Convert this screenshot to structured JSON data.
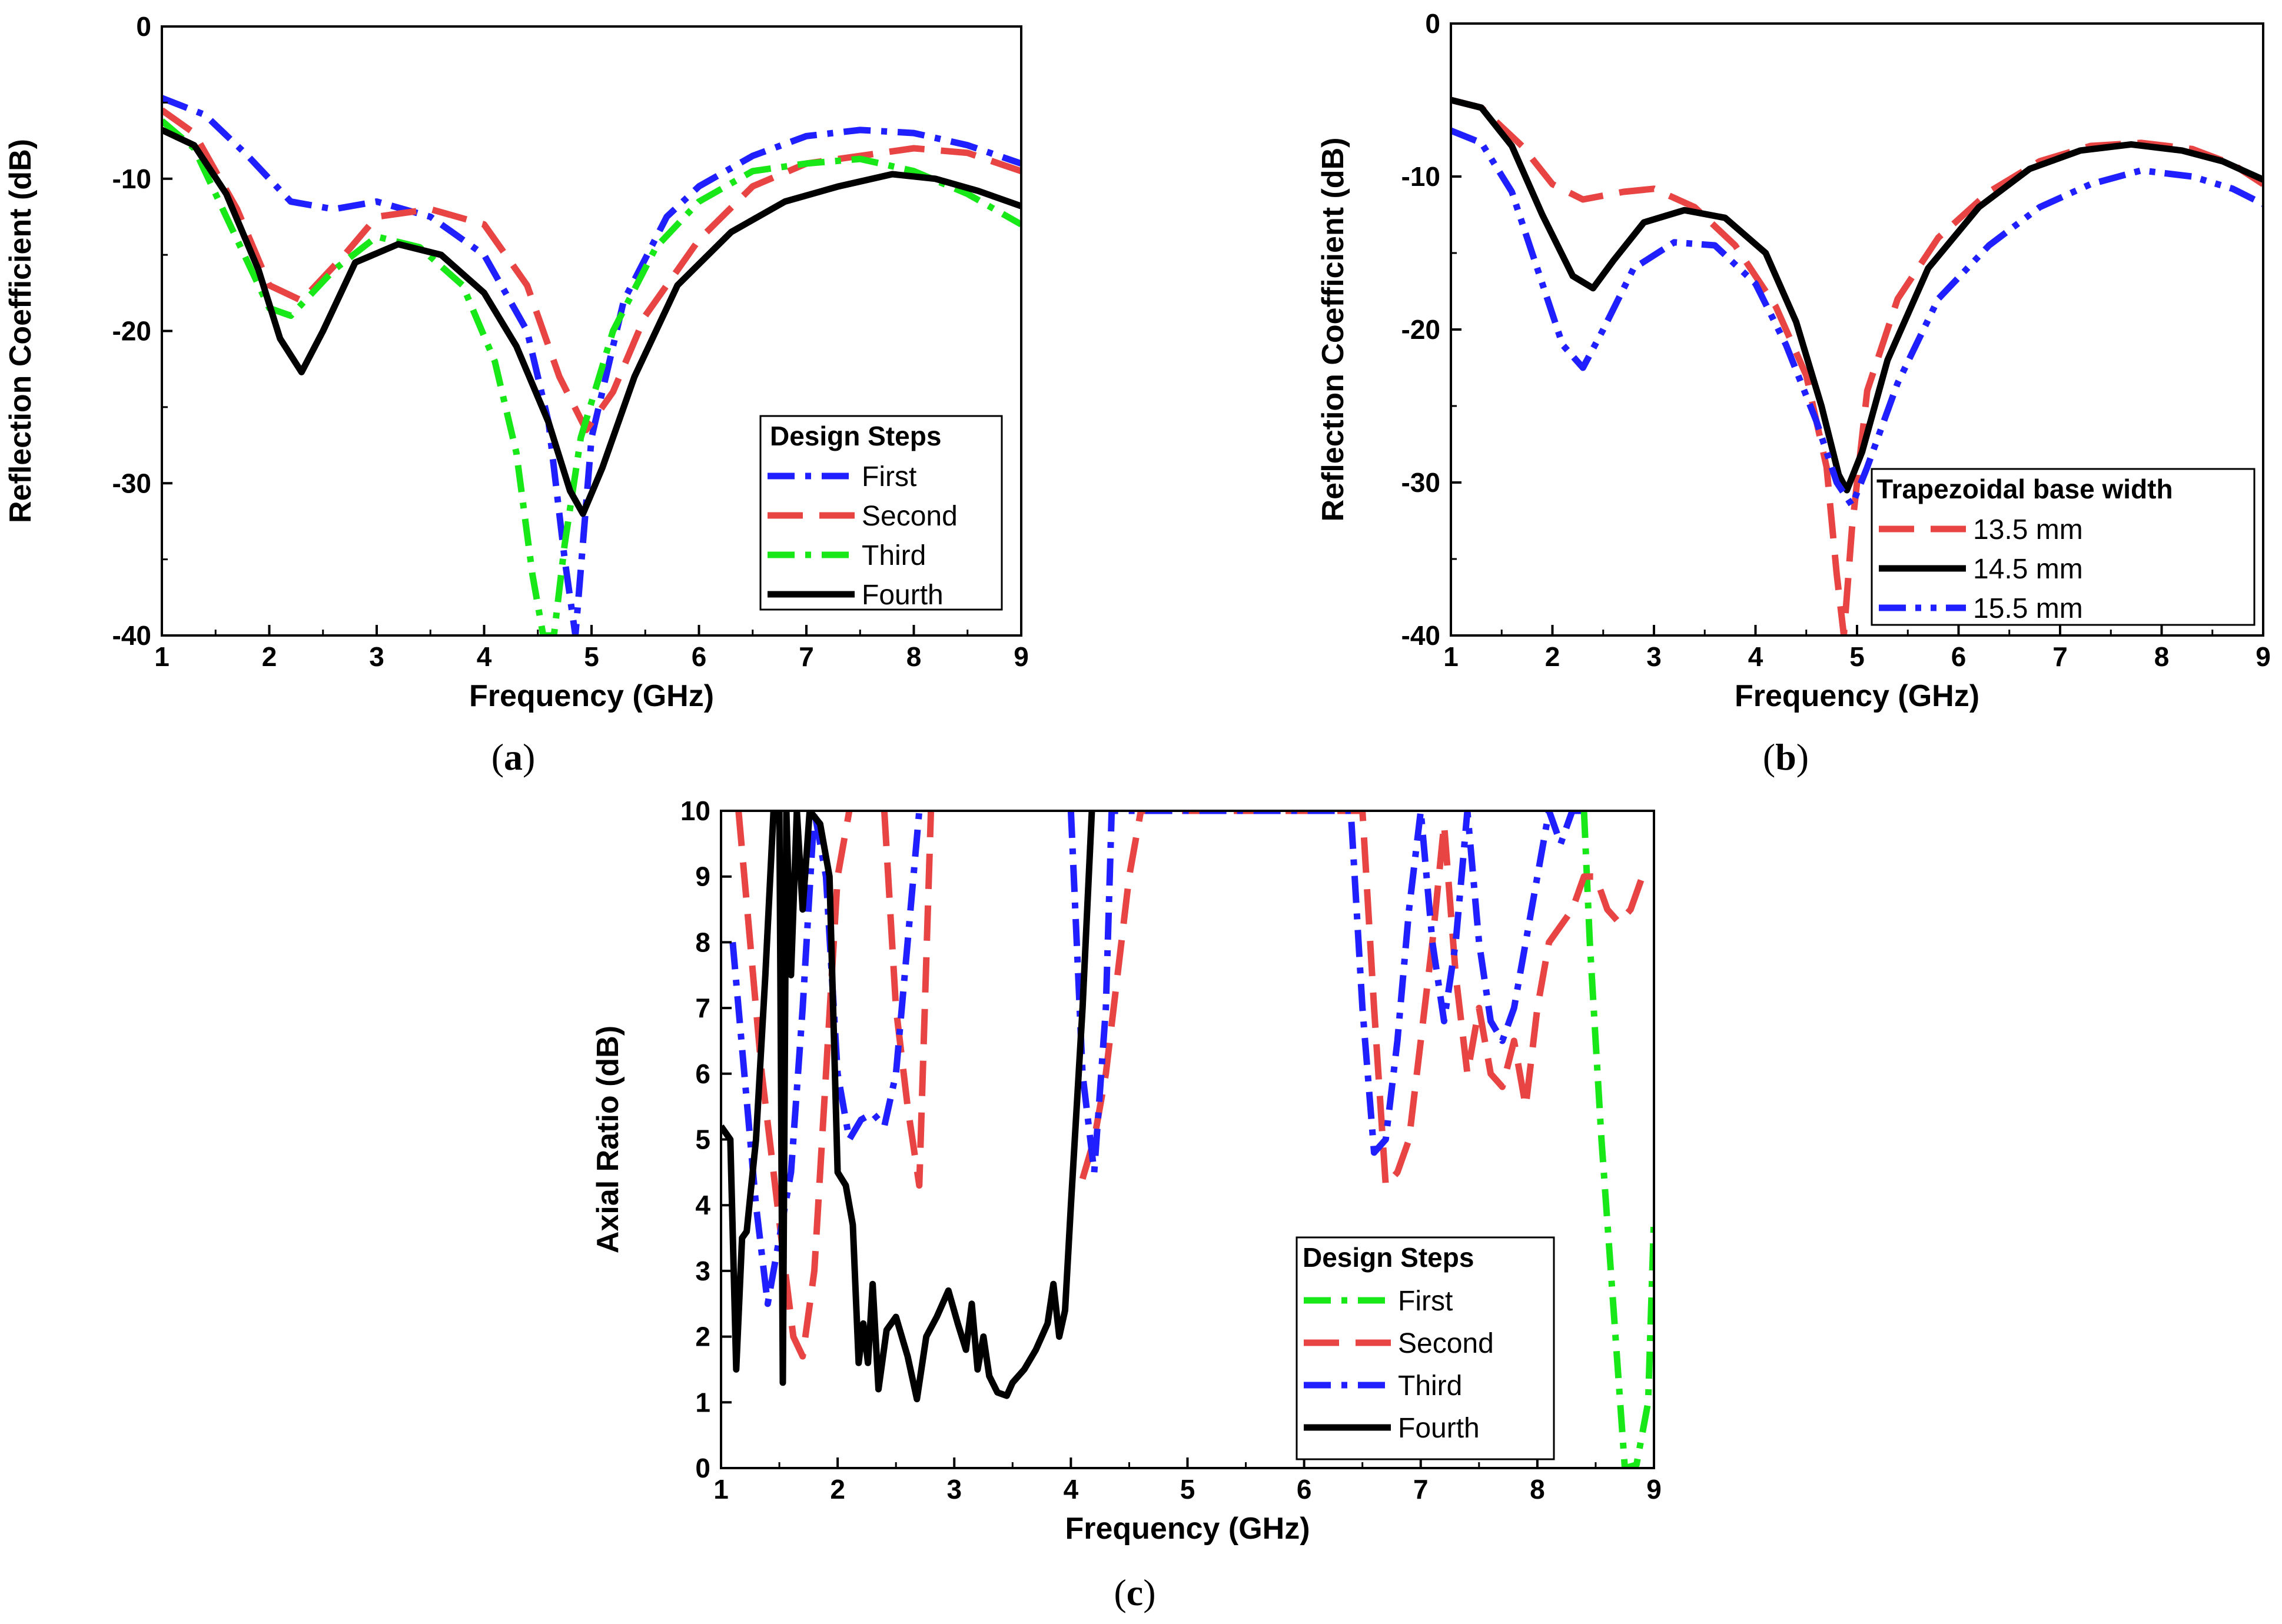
{
  "chart_data": [
    {
      "id": "a",
      "type": "line",
      "panel_label": "a",
      "xlabel": "Frequency (GHz)",
      "ylabel": "Reflection Coefficient (dB)",
      "xlim": [
        1,
        9
      ],
      "ylim": [
        -40,
        0
      ],
      "xticks": [
        1,
        2,
        3,
        4,
        5,
        6,
        7,
        8,
        9
      ],
      "yticks": [
        0,
        -10,
        -20,
        -30,
        -40
      ],
      "xtick_labels": [
        "1",
        "2",
        "3",
        "4",
        "5",
        "6",
        "7",
        "8",
        "9"
      ],
      "ytick_labels": [
        "0",
        "-10",
        "-20",
        "-30",
        "-40"
      ],
      "grid": false,
      "legend_title": "Design Steps",
      "legend_position": "bottom-right",
      "series": [
        {
          "name": "First",
          "color": "#1f1fff",
          "style": "dash-dot",
          "x": [
            1,
            1.4,
            1.8,
            2.2,
            2.6,
            3,
            3.5,
            4,
            4.4,
            4.6,
            4.75,
            4.85,
            5,
            5.3,
            5.7,
            6,
            6.5,
            7,
            7.5,
            8,
            8.5,
            9
          ],
          "y": [
            -4.7,
            -5.8,
            -8.5,
            -11.5,
            -12,
            -11.5,
            -12.5,
            -15,
            -20,
            -26,
            -35,
            -40,
            -27,
            -18,
            -12.5,
            -10.5,
            -8.5,
            -7.2,
            -6.8,
            -7,
            -7.8,
            -9
          ]
        },
        {
          "name": "Second",
          "color": "#e84444",
          "style": "dash",
          "x": [
            1,
            1.3,
            1.7,
            2,
            2.3,
            2.7,
            3,
            3.5,
            4,
            4.4,
            4.7,
            4.95,
            5.2,
            5.5,
            6,
            6.5,
            7,
            7.5,
            8,
            8.5,
            9
          ],
          "y": [
            -5.5,
            -7,
            -12,
            -17,
            -18,
            -15,
            -12.5,
            -12,
            -13,
            -17,
            -23,
            -26.5,
            -24,
            -19,
            -14,
            -10.5,
            -9,
            -8.5,
            -8,
            -8.3,
            -9.5
          ]
        },
        {
          "name": "Third",
          "color": "#18e818",
          "style": "dash-dot",
          "x": [
            1,
            1.3,
            1.7,
            2,
            2.2,
            2.6,
            3,
            3.4,
            3.8,
            4.1,
            4.3,
            4.45,
            4.55,
            4.65,
            4.75,
            4.9,
            5.2,
            5.6,
            6,
            6.5,
            7,
            7.5,
            8,
            8.5,
            9
          ],
          "y": [
            -6.2,
            -8,
            -14,
            -18.5,
            -19,
            -16,
            -13.8,
            -14.5,
            -17,
            -22,
            -28,
            -36,
            -40,
            -40,
            -34,
            -27,
            -20,
            -14.5,
            -11.5,
            -9.5,
            -9,
            -8.7,
            -9.5,
            -11,
            -13
          ]
        },
        {
          "name": "Fourth",
          "color": "#000000",
          "style": "solid",
          "x": [
            1,
            1.3,
            1.6,
            1.9,
            2.1,
            2.3,
            2.5,
            2.8,
            3.2,
            3.6,
            4,
            4.3,
            4.6,
            4.8,
            4.92,
            5.1,
            5.4,
            5.8,
            6.3,
            6.8,
            7.3,
            7.8,
            8.2,
            8.6,
            9
          ],
          "y": [
            -6.8,
            -7.8,
            -11,
            -16,
            -20.5,
            -22.7,
            -20,
            -15.5,
            -14.3,
            -15,
            -17.5,
            -21,
            -26,
            -30.5,
            -32,
            -29,
            -23,
            -17,
            -13.5,
            -11.5,
            -10.5,
            -9.7,
            -10,
            -10.8,
            -11.8
          ]
        }
      ]
    },
    {
      "id": "b",
      "type": "line",
      "panel_label": "b",
      "xlabel": "Frequency (GHz)",
      "ylabel": "Reflection Coefficient (dB)",
      "xlim": [
        1,
        9
      ],
      "ylim": [
        -40,
        0
      ],
      "xticks": [
        1,
        2,
        3,
        4,
        5,
        6,
        7,
        8,
        9
      ],
      "yticks": [
        0,
        -10,
        -20,
        -30,
        -40
      ],
      "xtick_labels": [
        "1",
        "2",
        "3",
        "4",
        "5",
        "6",
        "7",
        "8",
        "9"
      ],
      "ytick_labels": [
        "0",
        "-10",
        "-20",
        "-30",
        "-40"
      ],
      "grid": false,
      "legend_title": "Trapezoidal base width",
      "legend_position": "bottom-right",
      "series": [
        {
          "name": "13.5 mm",
          "color": "#e84444",
          "style": "dash",
          "x": [
            1,
            1.3,
            1.7,
            2,
            2.3,
            2.7,
            3,
            3.4,
            3.8,
            4.2,
            4.5,
            4.7,
            4.8,
            4.87,
            4.95,
            5.1,
            5.4,
            5.8,
            6.3,
            6.8,
            7.3,
            7.8,
            8.3,
            8.7,
            9
          ],
          "y": [
            -5,
            -5.5,
            -8,
            -10.5,
            -11.5,
            -11,
            -10.8,
            -12,
            -14.5,
            -18.5,
            -23,
            -29,
            -36,
            -40,
            -33,
            -24,
            -18,
            -14,
            -11,
            -9,
            -8,
            -7.8,
            -8.2,
            -9.2,
            -10.5
          ]
        },
        {
          "name": "14.5 mm",
          "color": "#000000",
          "style": "solid",
          "x": [
            1,
            1.3,
            1.6,
            1.9,
            2.2,
            2.4,
            2.6,
            2.9,
            3.3,
            3.7,
            4.1,
            4.4,
            4.65,
            4.82,
            4.9,
            5.05,
            5.3,
            5.7,
            6.2,
            6.7,
            7.2,
            7.7,
            8.2,
            8.6,
            9
          ],
          "y": [
            -5,
            -5.5,
            -8,
            -12.5,
            -16.5,
            -17.3,
            -15.5,
            -13,
            -12.2,
            -12.7,
            -15,
            -19.5,
            -25,
            -29.5,
            -30.5,
            -28,
            -22,
            -16,
            -12,
            -9.5,
            -8.3,
            -7.9,
            -8.3,
            -9,
            -10.2
          ]
        },
        {
          "name": "15.5 mm",
          "color": "#1f1fff",
          "style": "dash-dot-dot",
          "x": [
            1,
            1.3,
            1.6,
            1.9,
            2.1,
            2.3,
            2.5,
            2.8,
            3.2,
            3.6,
            4,
            4.3,
            4.6,
            4.8,
            4.95,
            5.1,
            5.4,
            5.8,
            6.3,
            6.8,
            7.3,
            7.8,
            8.3,
            8.7,
            9
          ],
          "y": [
            -7,
            -7.8,
            -11,
            -17,
            -21,
            -22.5,
            -20,
            -16,
            -14.3,
            -14.5,
            -17,
            -21,
            -26,
            -30,
            -31.5,
            -29,
            -23.5,
            -18,
            -14.5,
            -12,
            -10.5,
            -9.6,
            -10,
            -10.8,
            -11.8
          ]
        }
      ]
    },
    {
      "id": "c",
      "type": "line",
      "panel_label": "c",
      "xlabel": "Frequency (GHz)",
      "ylabel": "Axial Ratio (dB)",
      "xlim": [
        1,
        9
      ],
      "ylim": [
        0,
        10
      ],
      "xticks": [
        1,
        2,
        3,
        4,
        5,
        6,
        7,
        8,
        9
      ],
      "yticks": [
        0,
        1,
        2,
        3,
        4,
        5,
        6,
        7,
        8,
        9,
        10
      ],
      "xtick_labels": [
        "1",
        "2",
        "3",
        "4",
        "5",
        "6",
        "7",
        "8",
        "9"
      ],
      "ytick_labels": [
        "0",
        "1",
        "2",
        "3",
        "4",
        "5",
        "6",
        "7",
        "8",
        "9",
        "10"
      ],
      "grid": false,
      "legend_title": "Design Steps",
      "legend_position": "bottom-right",
      "series": [
        {
          "name": "First",
          "color": "#18e818",
          "style": "dash-dot",
          "x": [
            8.4,
            8.45,
            8.55,
            8.65,
            8.75,
            8.85,
            8.95,
            9
          ],
          "y": [
            10,
            8,
            5,
            2.5,
            0,
            0.05,
            1,
            3.8
          ]
        },
        {
          "name": "Second",
          "color": "#e84444",
          "style": "dash",
          "x": [
            1.15,
            1.25,
            1.35,
            1.45,
            1.55,
            1.62,
            1.7,
            1.8,
            1.9,
            2,
            2.1,
            2.2,
            2.3,
            2.4,
            2.5,
            2.6,
            2.7,
            2.8,
            3.9,
            4.1,
            4.2,
            4.3,
            4.4,
            4.5,
            4.6,
            6.5,
            6.6,
            6.7,
            6.8,
            6.9,
            7,
            7.1,
            7.2,
            7.3,
            7.4,
            7.5,
            7.6,
            7.7,
            7.8,
            7.9,
            8,
            8.1,
            8.3,
            8.4,
            8.5,
            8.6,
            8.7,
            8.8,
            8.9
          ],
          "y": [
            10,
            8,
            6,
            4.5,
            3,
            2,
            1.7,
            3,
            6,
            9,
            10,
            null,
            null,
            10,
            7,
            5.5,
            4.3,
            10,
            null,
            4.4,
            5,
            6,
            7.5,
            9,
            10,
            10,
            7,
            4.3,
            4.5,
            5,
            6.5,
            8,
            9.8,
            7.5,
            6,
            7,
            6,
            5.8,
            6.5,
            5.5,
            7,
            8,
            8.5,
            9,
            9,
            8.5,
            8.3,
            8.5,
            9
          ]
        },
        {
          "name": "Third",
          "color": "#1f1fff",
          "style": "dash-dot",
          "x": [
            1.1,
            1.2,
            1.3,
            1.4,
            1.5,
            1.6,
            1.7,
            1.8,
            1.9,
            2,
            2.1,
            2.2,
            2.3,
            2.4,
            2.5,
            2.6,
            2.7,
            3.9,
            4,
            4.1,
            4.2,
            4.3,
            4.35,
            6.4,
            6.5,
            6.6,
            6.7,
            6.8,
            6.9,
            7,
            7.1,
            7.2,
            7.3,
            7.4,
            7.5,
            7.6,
            7.7,
            7.8,
            7.9,
            8,
            8.1,
            8.2,
            8.3,
            8.4
          ],
          "y": [
            8,
            6,
            4,
            2.5,
            3.5,
            4.5,
            7,
            10,
            9,
            6,
            5,
            5.3,
            5.4,
            5.2,
            6,
            8,
            10,
            null,
            10,
            6,
            4.5,
            7,
            10,
            10,
            7,
            4.8,
            5,
            6.5,
            8.5,
            10,
            8,
            6.8,
            8,
            10,
            8,
            6.8,
            6.5,
            7,
            8,
            9,
            10,
            9.5,
            10,
            10
          ]
        },
        {
          "name": "Fourth",
          "color": "#000000",
          "style": "solid",
          "x": [
            1,
            1.08,
            1.13,
            1.18,
            1.22,
            1.3,
            1.38,
            1.45,
            1.5,
            1.53,
            1.56,
            1.6,
            1.65,
            1.7,
            1.76,
            1.85,
            1.93,
            2,
            2.07,
            2.13,
            2.18,
            2.22,
            2.26,
            2.3,
            2.35,
            2.42,
            2.5,
            2.6,
            2.68,
            2.76,
            2.85,
            2.95,
            3.03,
            3.1,
            3.15,
            3.2,
            3.25,
            3.3,
            3.37,
            3.45,
            3.5,
            3.6,
            3.7,
            3.8,
            3.85,
            3.9,
            3.95,
            4,
            4.05,
            4.1,
            4.18
          ],
          "y": [
            5.2,
            5,
            1.5,
            3.5,
            3.6,
            5,
            7.5,
            10,
            10,
            1.3,
            10,
            7.5,
            10,
            8.5,
            10,
            9.8,
            9,
            4.5,
            4.3,
            3.7,
            1.6,
            2.2,
            1.6,
            2.8,
            1.2,
            2.1,
            2.3,
            1.7,
            1.05,
            2,
            2.3,
            2.7,
            2.2,
            1.8,
            2.5,
            1.5,
            2,
            1.4,
            1.15,
            1.1,
            1.3,
            1.5,
            1.8,
            2.2,
            2.8,
            2,
            2.4,
            4,
            5.5,
            7,
            10
          ]
        }
      ]
    }
  ]
}
